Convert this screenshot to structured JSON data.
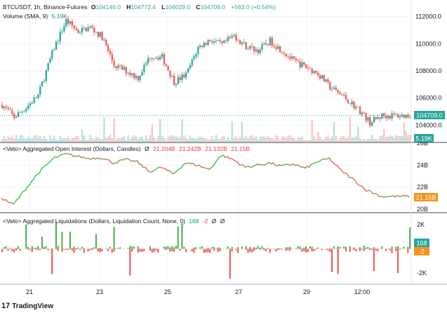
{
  "legends": {
    "price": {
      "symbol": "BTCUSDT, 1h, Binance-Futures",
      "o_label": "O",
      "o": "104146.0",
      "h_label": "H",
      "h": "104772.4",
      "l_label": "L",
      "l": "104029.0",
      "c_label": "C",
      "c": "104709.0",
      "change": "+563.0 (+0.54%)"
    },
    "volume": {
      "label": "Volume (SMA, 9)",
      "value": "5.19K"
    },
    "oi": {
      "label": "<Velo> Aggregated Open Interest (Dollars, Candles)",
      "zero": "Ø",
      "v1": "21.204B",
      "v2": "21.242B",
      "v3": "21.132B",
      "v4": "21.15B"
    },
    "liq": {
      "label": "<Velo> Aggregated Liquidations (Dollars, Liquidation Count, None, 0)",
      "v1": "168",
      "v2": "-2",
      "v3": "Ø",
      "v4": "Ø"
    }
  },
  "brand": {
    "name": "TradingView",
    "mark": "17"
  },
  "colors": {
    "up": "#26a69a",
    "down": "#ef5350",
    "oi_line": "#2bbd3b",
    "grid": "#f0f3fa"
  },
  "chart_data": [
    {
      "type": "candlestick",
      "title": "BTCUSDT, 1h, Binance-Futures",
      "x_ticks": [
        "21",
        "23",
        "25",
        "27",
        "29",
        "12:00"
      ],
      "y_ticks": [
        "112000.0",
        "110000.0",
        "108000.0",
        "106000.0",
        "104000.0"
      ],
      "ylim": [
        103400,
        112700
      ],
      "last_price": "104709.0",
      "close_path": [
        [
          0,
          105500
        ],
        [
          6,
          104600
        ],
        [
          12,
          105300
        ],
        [
          18,
          106200
        ],
        [
          26,
          109700
        ],
        [
          32,
          111700
        ],
        [
          38,
          110900
        ],
        [
          44,
          111200
        ],
        [
          50,
          110500
        ],
        [
          56,
          108400
        ],
        [
          62,
          108000
        ],
        [
          68,
          107500
        ],
        [
          74,
          109100
        ],
        [
          80,
          109000
        ],
        [
          86,
          107200
        ],
        [
          92,
          107700
        ],
        [
          98,
          109700
        ],
        [
          104,
          110300
        ],
        [
          110,
          109900
        ],
        [
          116,
          110600
        ],
        [
          122,
          109800
        ],
        [
          128,
          109500
        ],
        [
          134,
          110200
        ],
        [
          140,
          109500
        ],
        [
          146,
          108700
        ],
        [
          152,
          108300
        ],
        [
          158,
          107800
        ],
        [
          164,
          106800
        ],
        [
          170,
          106200
        ],
        [
          174,
          105700
        ],
        [
          178,
          105200
        ],
        [
          184,
          104200
        ],
        [
          190,
          104700
        ]
      ]
    },
    {
      "type": "bar",
      "title": "Volume (SMA, 9)",
      "last_value": "5.19K"
    },
    {
      "type": "line",
      "title": "Aggregated Open Interest (Dollars, Candles)",
      "y_ticks": [
        "26B",
        "24B",
        "22B",
        "20B"
      ],
      "ylim": [
        19.8,
        26.0
      ],
      "last_value": "21.15B",
      "path": [
        [
          0,
          21.0
        ],
        [
          6,
          20.4
        ],
        [
          12,
          21.8
        ],
        [
          18,
          23.2
        ],
        [
          26,
          24.6
        ],
        [
          32,
          25.0
        ],
        [
          38,
          24.8
        ],
        [
          44,
          24.6
        ],
        [
          50,
          24.7
        ],
        [
          56,
          24.2
        ],
        [
          62,
          24.5
        ],
        [
          68,
          24.3
        ],
        [
          74,
          23.4
        ],
        [
          80,
          23.8
        ],
        [
          86,
          23.2
        ],
        [
          92,
          24.2
        ],
        [
          98,
          24.0
        ],
        [
          104,
          23.6
        ],
        [
          110,
          24.9
        ],
        [
          116,
          24.5
        ],
        [
          122,
          23.8
        ],
        [
          128,
          24.0
        ],
        [
          134,
          24.2
        ],
        [
          140,
          23.9
        ],
        [
          146,
          24.1
        ],
        [
          152,
          23.7
        ],
        [
          158,
          24.3
        ],
        [
          164,
          24.6
        ],
        [
          170,
          23.5
        ],
        [
          176,
          22.7
        ],
        [
          182,
          21.8
        ],
        [
          190,
          21.15
        ]
      ]
    },
    {
      "type": "bar",
      "title": "Aggregated Liquidations (Dollars, Liquidation Count, None, 0)",
      "y_ticks": [
        "2K",
        "-2K"
      ],
      "ylim": [
        -2800,
        2800
      ],
      "last_values": [
        "168",
        "-2"
      ]
    }
  ]
}
